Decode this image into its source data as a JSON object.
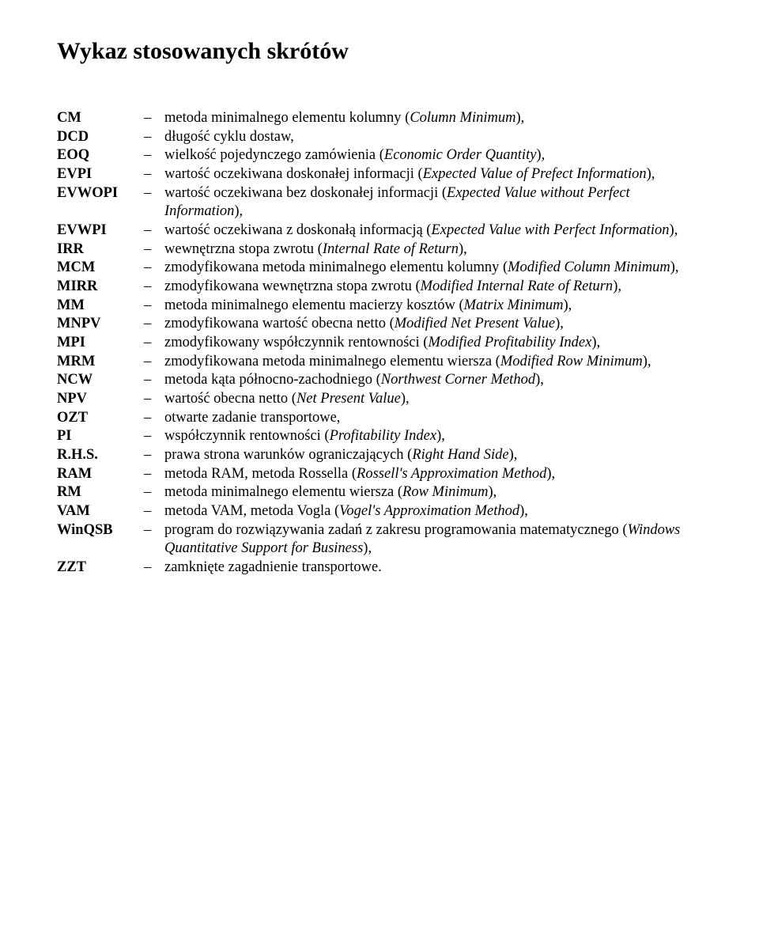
{
  "title": "Wykaz stosowanych skrótów",
  "entries": [
    {
      "abbr": "CM",
      "def_parts": [
        [
          "metoda minimalnego elementu kolumny (",
          false
        ],
        [
          "Column Minimum",
          true
        ],
        [
          "),",
          false
        ]
      ]
    },
    {
      "abbr": "DCD",
      "def_parts": [
        [
          "długość cyklu dostaw,",
          false
        ]
      ]
    },
    {
      "abbr": "EOQ",
      "def_parts": [
        [
          "wielkość pojedynczego zamówienia (",
          false
        ],
        [
          "Economic Order Quantity",
          true
        ],
        [
          "),",
          false
        ]
      ]
    },
    {
      "abbr": "EVPI",
      "def_parts": [
        [
          "wartość oczekiwana doskonałej informacji (",
          false
        ],
        [
          "Expected Value of Prefect Information",
          true
        ],
        [
          "),",
          false
        ]
      ]
    },
    {
      "abbr": "EVWOPI",
      "def_parts": [
        [
          "wartość oczekiwana bez doskonałej informacji (",
          false
        ],
        [
          "Expected Value without Perfect Information",
          true
        ],
        [
          "),",
          false
        ]
      ]
    },
    {
      "abbr": "EVWPI",
      "def_parts": [
        [
          "wartość oczekiwana z doskonałą informacją (",
          false
        ],
        [
          "Expected Value with Perfect Information",
          true
        ],
        [
          "),",
          false
        ]
      ]
    },
    {
      "abbr": "IRR",
      "def_parts": [
        [
          "wewnętrzna stopa zwrotu (",
          false
        ],
        [
          "Internal Rate of Return",
          true
        ],
        [
          "),",
          false
        ]
      ]
    },
    {
      "abbr": "MCM",
      "def_parts": [
        [
          "zmodyfikowana metoda minimalnego elementu kolumny (",
          false
        ],
        [
          "Modified Column Minimum",
          true
        ],
        [
          "),",
          false
        ]
      ]
    },
    {
      "abbr": "MIRR",
      "def_parts": [
        [
          "zmodyfikowana wewnętrzna stopa zwrotu (",
          false
        ],
        [
          "Modified Internal Rate of Return",
          true
        ],
        [
          "),",
          false
        ]
      ]
    },
    {
      "abbr": "MM",
      "def_parts": [
        [
          "metoda minimalnego elementu macierzy kosztów (",
          false
        ],
        [
          "Matrix Minimum",
          true
        ],
        [
          "),",
          false
        ]
      ]
    },
    {
      "abbr": "MNPV",
      "def_parts": [
        [
          "zmodyfikowana wartość obecna netto (",
          false
        ],
        [
          "Modified Net Present Value",
          true
        ],
        [
          "),",
          false
        ]
      ]
    },
    {
      "abbr": "MPI",
      "def_parts": [
        [
          "zmodyfikowany współczynnik rentowności (",
          false
        ],
        [
          "Modified Profitability Index",
          true
        ],
        [
          "),",
          false
        ]
      ]
    },
    {
      "abbr": "MRM",
      "def_parts": [
        [
          "zmodyfikowana metoda minimalnego elementu wiersza (",
          false
        ],
        [
          "Modified Row Minimum",
          true
        ],
        [
          "),",
          false
        ]
      ]
    },
    {
      "abbr": "NCW",
      "def_parts": [
        [
          "metoda kąta północno-zachodniego (",
          false
        ],
        [
          "Northwest Corner Method",
          true
        ],
        [
          "),",
          false
        ]
      ]
    },
    {
      "abbr": "NPV",
      "def_parts": [
        [
          "wartość obecna netto (",
          false
        ],
        [
          "Net Present Value",
          true
        ],
        [
          "),",
          false
        ]
      ]
    },
    {
      "abbr": "OZT",
      "def_parts": [
        [
          "otwarte zadanie transportowe,",
          false
        ]
      ]
    },
    {
      "abbr": "PI",
      "def_parts": [
        [
          "współczynnik rentowności (",
          false
        ],
        [
          "Profitability Index",
          true
        ],
        [
          "),",
          false
        ]
      ]
    },
    {
      "abbr": "R.H.S.",
      "def_parts": [
        [
          "prawa strona warunków ograniczających (",
          false
        ],
        [
          "Right Hand Side",
          true
        ],
        [
          "),",
          false
        ]
      ]
    },
    {
      "abbr": "RAM",
      "def_parts": [
        [
          "metoda RAM, metoda Rossella (",
          false
        ],
        [
          "Rossell's Approximation Method",
          true
        ],
        [
          "),",
          false
        ]
      ]
    },
    {
      "abbr": "RM",
      "def_parts": [
        [
          "metoda minimalnego elementu wiersza (",
          false
        ],
        [
          "Row Minimum",
          true
        ],
        [
          "),",
          false
        ]
      ]
    },
    {
      "abbr": "VAM",
      "def_parts": [
        [
          "metoda VAM, metoda Vogla (",
          false
        ],
        [
          "Vogel's Approximation Method",
          true
        ],
        [
          "),",
          false
        ]
      ]
    },
    {
      "abbr": "WinQSB",
      "def_parts": [
        [
          "program do rozwiązywania zadań z zakresu programowania matematycznego (",
          false
        ],
        [
          "Windows Quantitative Support for Business",
          true
        ],
        [
          "),",
          false
        ]
      ]
    },
    {
      "abbr": "ZZT",
      "def_parts": [
        [
          "zamknięte zagadnienie transportowe.",
          false
        ]
      ]
    }
  ],
  "dash": "–"
}
